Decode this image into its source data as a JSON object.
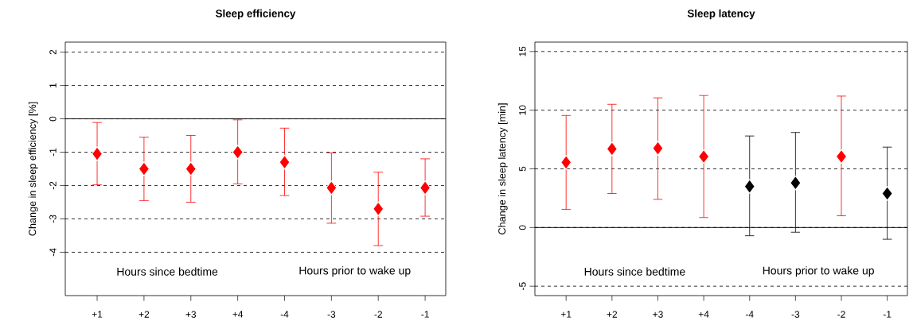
{
  "chart_data": [
    {
      "type": "scatter",
      "title": "Sleep efficiency",
      "ylabel": "Change in sleep efficiency [%]",
      "categories": [
        "+1",
        "+2",
        "+3",
        "+4",
        "-4",
        "-3",
        "-2",
        "-1"
      ],
      "values": [
        -1.05,
        -1.5,
        -1.5,
        -1.0,
        -1.3,
        -2.07,
        -2.7,
        -2.07
      ],
      "errors": [
        [
          -1.98,
          -0.11
        ],
        [
          -2.45,
          -0.55
        ],
        [
          -2.5,
          -0.5
        ],
        [
          -1.95,
          -0.03
        ],
        [
          -2.3,
          -0.28
        ],
        [
          -3.13,
          -1.02
        ],
        [
          -3.8,
          -1.6
        ],
        [
          -2.92,
          -1.2
        ]
      ],
      "colors": [
        "#ff0000",
        "#ff0000",
        "#ff0000",
        "#ff0000",
        "#ff0000",
        "#ff0000",
        "#ff0000",
        "#ff0000"
      ],
      "marker": "diamond",
      "grid": "y",
      "ylim": [
        -5.3,
        2.3
      ],
      "yticks": [
        -4,
        -3,
        -2,
        -1,
        0,
        1,
        2
      ],
      "ref_lines": [
        {
          "axis": "y",
          "value": 0,
          "color": "#000000",
          "line_style": "solid"
        }
      ],
      "annotations": [
        "Hours since bedtime",
        "Hours prior to wake up"
      ]
    },
    {
      "type": "scatter",
      "title": "Sleep latency",
      "ylabel": "Change in sleep latency [min]",
      "categories": [
        "+1",
        "+2",
        "+3",
        "+4",
        "-4",
        "-3",
        "-2",
        "-1"
      ],
      "values": [
        5.55,
        6.7,
        6.75,
        6.05,
        3.5,
        3.8,
        6.05,
        2.9
      ],
      "errors": [
        [
          1.55,
          9.55
        ],
        [
          2.9,
          10.5
        ],
        [
          2.4,
          11.05
        ],
        [
          0.85,
          11.25
        ],
        [
          -0.7,
          7.8
        ],
        [
          -0.4,
          8.1
        ],
        [
          1.0,
          11.2
        ],
        [
          -1.0,
          6.85
        ]
      ],
      "colors": [
        "#ff0000",
        "#ff0000",
        "#ff0000",
        "#ff0000",
        "#000000",
        "#000000",
        "#ff0000",
        "#000000"
      ],
      "marker": "diamond",
      "grid": "y",
      "ylim": [
        -5.8,
        15.8
      ],
      "yticks": [
        -5,
        0,
        5,
        10,
        15
      ],
      "ref_lines": [
        {
          "axis": "y",
          "value": 0,
          "color": "#000000",
          "line_style": "solid"
        }
      ],
      "annotations": [
        "Hours since bedtime",
        "Hours prior to wake up"
      ]
    }
  ]
}
